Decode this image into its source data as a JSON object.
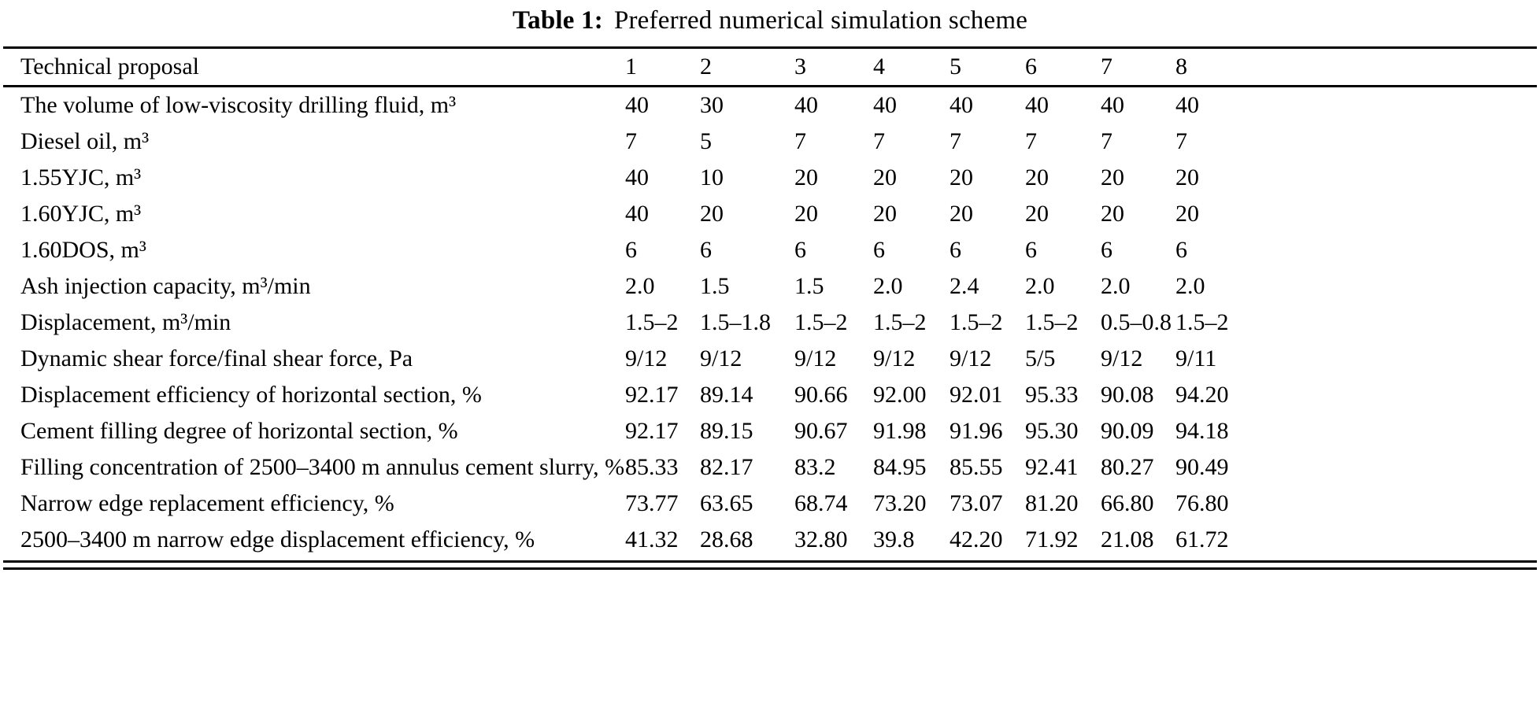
{
  "title": {
    "label": "Table 1:",
    "text": "Preferred numerical simulation scheme"
  },
  "table": {
    "header": {
      "label": "Technical proposal",
      "columns": [
        "1",
        "2",
        "3",
        "4",
        "5",
        "6",
        "7",
        "8"
      ]
    },
    "rows": [
      {
        "label": "The volume of low-viscosity drilling fluid, m³",
        "values": [
          "40",
          "30",
          "40",
          "40",
          "40",
          "40",
          "40",
          "40"
        ]
      },
      {
        "label": "Diesel oil, m³",
        "values": [
          "7",
          "5",
          "7",
          "7",
          "7",
          "7",
          "7",
          "7"
        ]
      },
      {
        "label": "1.55YJC, m³",
        "values": [
          "40",
          "10",
          "20",
          "20",
          "20",
          "20",
          "20",
          "20"
        ]
      },
      {
        "label": "1.60YJC, m³",
        "values": [
          "40",
          "20",
          "20",
          "20",
          "20",
          "20",
          "20",
          "20"
        ]
      },
      {
        "label": "1.60DOS, m³",
        "values": [
          "6",
          "6",
          "6",
          "6",
          "6",
          "6",
          "6",
          "6"
        ]
      },
      {
        "label": "Ash injection capacity, m³/min",
        "values": [
          "2.0",
          "1.5",
          "1.5",
          "2.0",
          "2.4",
          "2.0",
          "2.0",
          "2.0"
        ]
      },
      {
        "label": "Displacement, m³/min",
        "values": [
          "1.5–2",
          "1.5–1.8",
          "1.5–2",
          "1.5–2",
          "1.5–2",
          "1.5–2",
          "0.5–0.8",
          "1.5–2"
        ]
      },
      {
        "label": "Dynamic shear force/final shear force, Pa",
        "values": [
          "9/12",
          "9/12",
          "9/12",
          "9/12",
          "9/12",
          "5/5",
          "9/12",
          "9/11"
        ]
      },
      {
        "label": "Displacement efficiency of horizontal section, %",
        "values": [
          "92.17",
          "89.14",
          "90.66",
          "92.00",
          "92.01",
          "95.33",
          "90.08",
          "94.20"
        ]
      },
      {
        "label": "Cement filling degree of horizontal section, %",
        "values": [
          "92.17",
          "89.15",
          "90.67",
          "91.98",
          "91.96",
          "95.30",
          "90.09",
          "94.18"
        ]
      },
      {
        "label": "Filling concentration of 2500–3400 m annulus cement slurry, %",
        "values": [
          "85.33",
          "82.17",
          "83.2",
          "84.95",
          "85.55",
          "92.41",
          "80.27",
          "90.49"
        ]
      },
      {
        "label": "Narrow edge replacement efficiency, %",
        "values": [
          "73.77",
          "63.65",
          "68.74",
          "73.20",
          "73.07",
          "81.20",
          "66.80",
          "76.80"
        ]
      },
      {
        "label": "2500–3400 m narrow edge displacement efficiency, %",
        "values": [
          "41.32",
          "28.68",
          "32.80",
          "39.8",
          "42.20",
          "71.92",
          "21.08",
          "61.72"
        ]
      }
    ]
  }
}
